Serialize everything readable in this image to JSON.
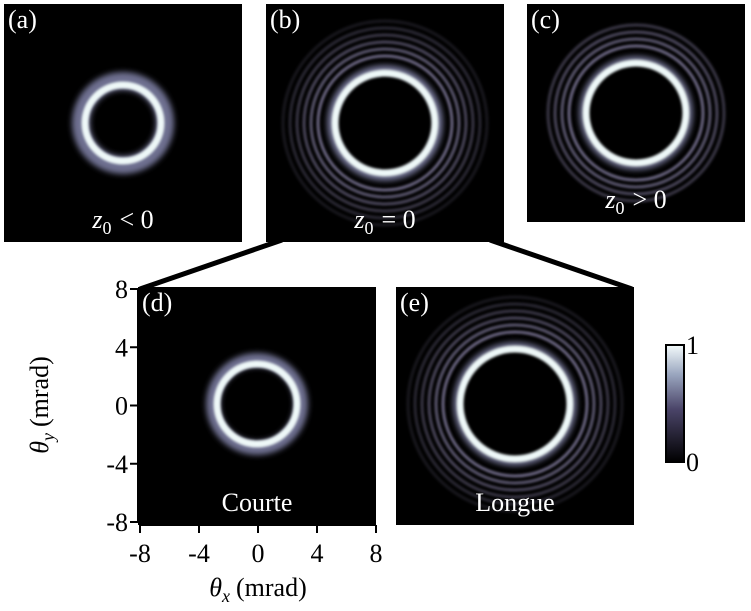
{
  "panels": [
    {
      "tag": "(a)",
      "var": "z",
      "sub": "0",
      "rel": "< 0"
    },
    {
      "tag": "(b)",
      "var": "z",
      "sub": "0",
      "rel": "= 0"
    },
    {
      "tag": "(c)",
      "var": "z",
      "sub": "0",
      "rel": "> 0"
    },
    {
      "tag": "(d)",
      "name": "Courte"
    },
    {
      "tag": "(e)",
      "name": "Longue"
    }
  ],
  "plus": "+",
  "axes": {
    "xvar": "θ",
    "xsub": "x",
    "xunit": "(mrad)",
    "yvar": "θ",
    "ysub": "y",
    "yunit": "(mrad)",
    "xlim": [
      -8,
      8
    ],
    "ylim": [
      -8,
      8
    ],
    "xticks": [
      -8,
      -4,
      0,
      4,
      8
    ],
    "yticks": [
      -8,
      -4,
      0,
      4,
      8
    ]
  },
  "colorbar": {
    "lim": [
      0,
      1
    ],
    "ticks": [
      0,
      1
    ]
  }
}
